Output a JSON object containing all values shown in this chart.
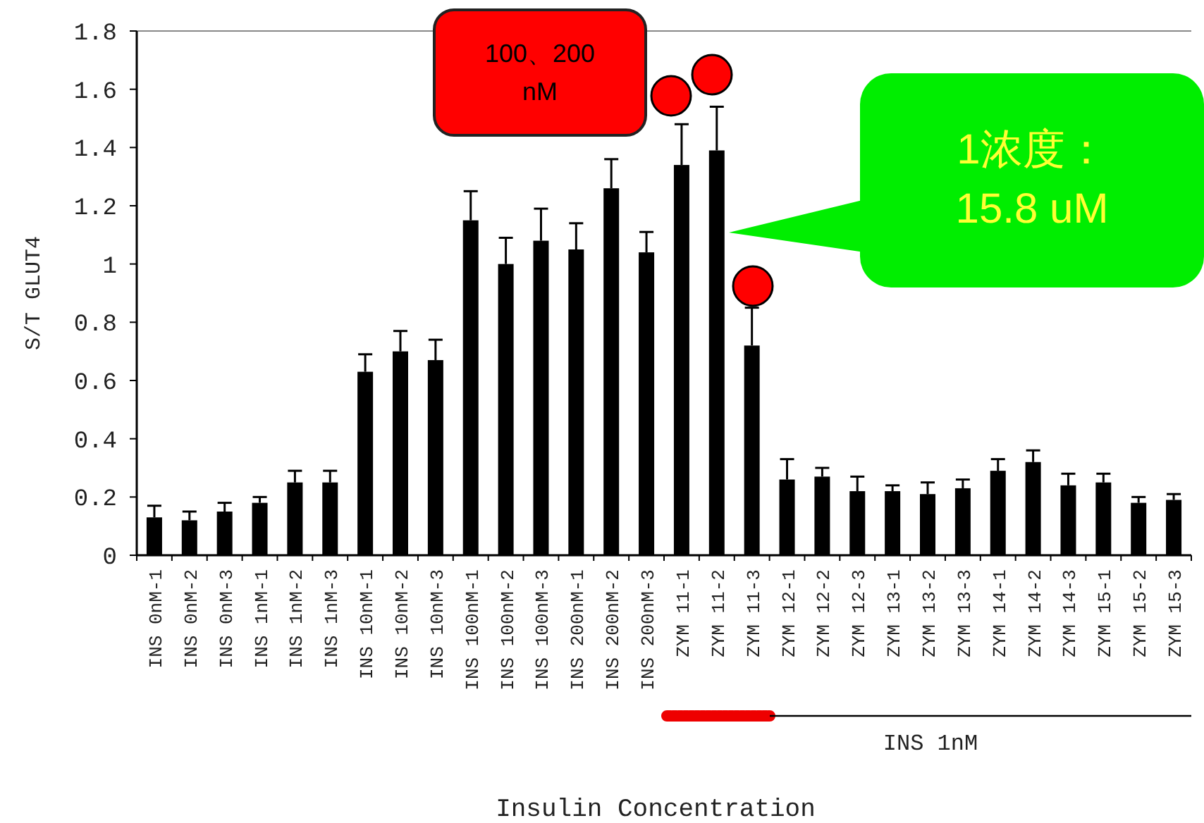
{
  "chart_data": {
    "type": "bar",
    "xlabel": "Insulin Concentration",
    "ylabel": "S/T GLUT4",
    "categories": [
      "INS 0nM-1",
      "INS 0nM-2",
      "INS 0nM-3",
      "INS 1nM-1",
      "INS 1nM-2",
      "INS 1nM-3",
      "INS 10nM-1",
      "INS 10nM-2",
      "INS 10nM-3",
      "INS 100nM-1",
      "INS 100nM-2",
      "INS 100nM-3",
      "INS 200nM-1",
      "INS 200nM-2",
      "INS 200nM-3",
      "ZYM 11-1",
      "ZYM 11-2",
      "ZYM 11-3",
      "ZYM 12-1",
      "ZYM 12-2",
      "ZYM 12-3",
      "ZYM 13-1",
      "ZYM 13-2",
      "ZYM 13-3",
      "ZYM 14-1",
      "ZYM 14-2",
      "ZYM 14-3",
      "ZYM 15-1",
      "ZYM 15-2",
      "ZYM 15-3"
    ],
    "values": [
      0.13,
      0.12,
      0.15,
      0.18,
      0.25,
      0.25,
      0.63,
      0.7,
      0.67,
      1.15,
      1.0,
      1.08,
      1.05,
      1.26,
      1.04,
      1.34,
      1.39,
      0.72,
      0.26,
      0.27,
      0.22,
      0.22,
      0.21,
      0.23,
      0.29,
      0.32,
      0.24,
      0.25,
      0.18,
      0.19
    ],
    "errors": [
      [
        0.13,
        0.17
      ],
      [
        0.12,
        0.15
      ],
      [
        0.15,
        0.18
      ],
      [
        0.18,
        0.2
      ],
      [
        0.25,
        0.29
      ],
      [
        0.25,
        0.29
      ],
      [
        0.63,
        0.69
      ],
      [
        0.7,
        0.77
      ],
      [
        0.67,
        0.74
      ],
      [
        1.15,
        1.25
      ],
      [
        1.0,
        1.09
      ],
      [
        1.08,
        1.19
      ],
      [
        1.05,
        1.14
      ],
      [
        1.26,
        1.36
      ],
      [
        1.04,
        1.11
      ],
      [
        1.34,
        1.48
      ],
      [
        1.39,
        1.54
      ],
      [
        0.72,
        0.85
      ],
      [
        0.26,
        0.33
      ],
      [
        0.27,
        0.3
      ],
      [
        0.22,
        0.27
      ],
      [
        0.22,
        0.24
      ],
      [
        0.21,
        0.25
      ],
      [
        0.23,
        0.26
      ],
      [
        0.29,
        0.33
      ],
      [
        0.32,
        0.36
      ],
      [
        0.24,
        0.28
      ],
      [
        0.25,
        0.28
      ],
      [
        0.18,
        0.2
      ],
      [
        0.19,
        0.21
      ]
    ],
    "color": "#000000",
    "ylim": [
      0,
      1.8
    ],
    "yticks": [
      0,
      0.2,
      0.4,
      0.6,
      0.8,
      1,
      1.2,
      1.4,
      1.6,
      1.8
    ],
    "grid": false,
    "annotations": [
      "100、200 nM",
      "1浓度：\n15.8 uM",
      "INS 1nM"
    ]
  }
}
